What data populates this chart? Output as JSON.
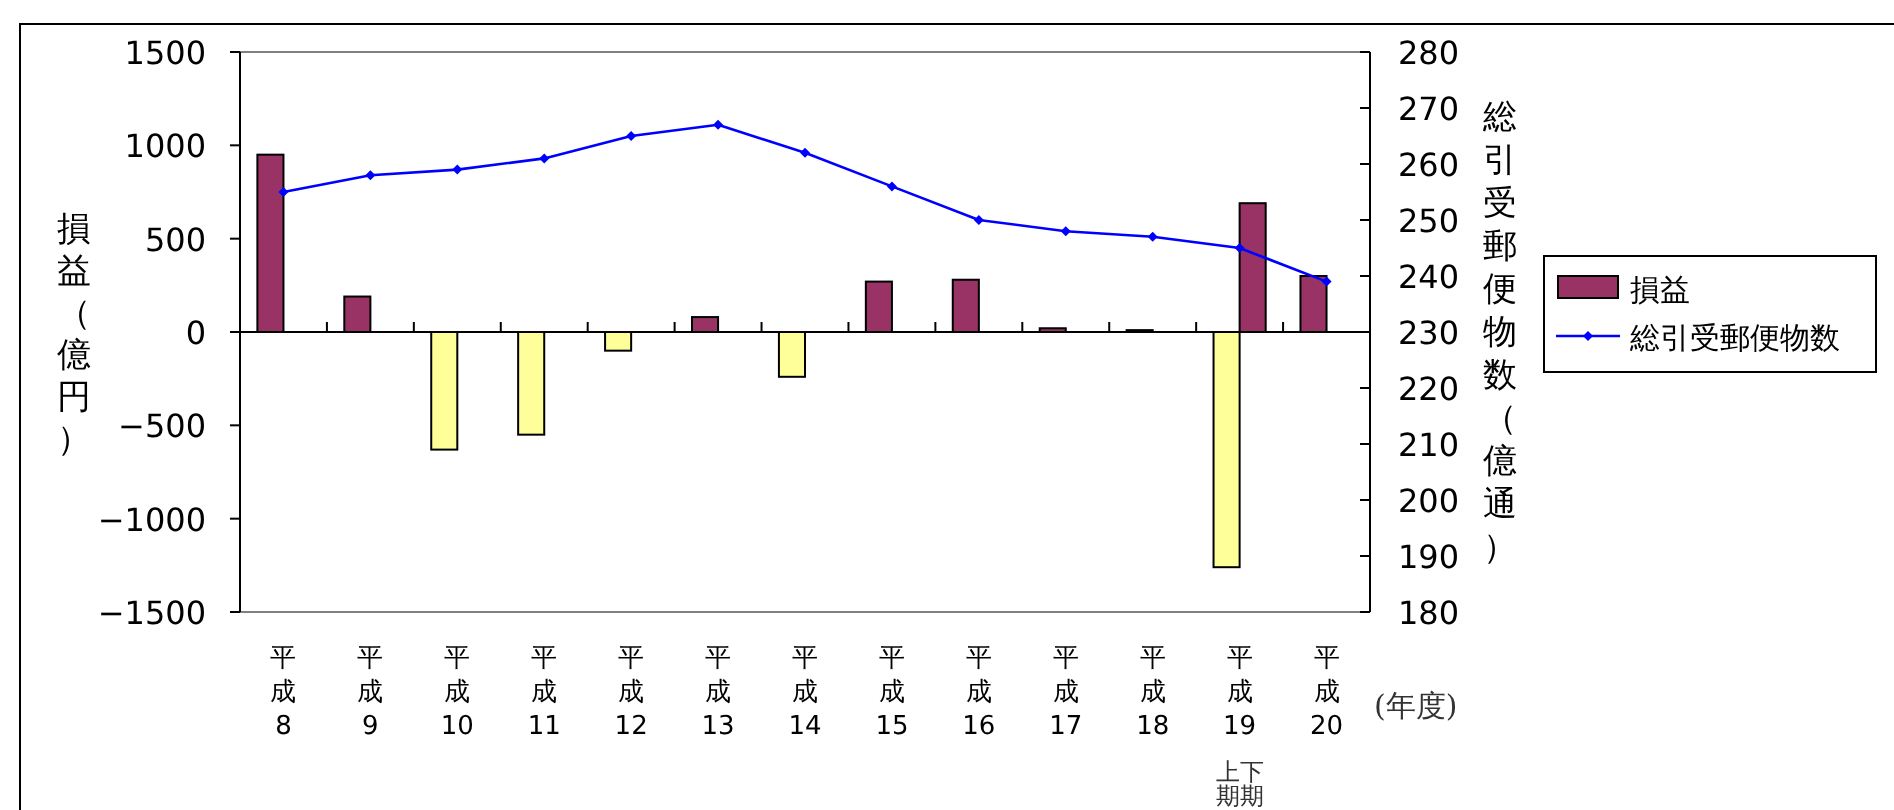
{
  "chart_data": {
    "type": "bar",
    "categories": [
      "平成8",
      "平成9",
      "平成10",
      "平成11",
      "平成12",
      "平成13",
      "平成14",
      "平成15",
      "平成16",
      "平成17",
      "平成18",
      "平成19",
      "平成20"
    ],
    "series": [
      {
        "name": "損益",
        "color": "#993366",
        "colors": [
          "#993366",
          "#993366",
          "#ffff99",
          "#ffff99",
          "#ffff99",
          "#993366",
          "#ffff99",
          "#993366",
          "#993366",
          "#993366",
          "#993366",
          "#ffff99",
          "#993366"
        ],
        "values": [
          950,
          190,
          -630,
          -550,
          -100,
          80,
          -240,
          270,
          280,
          20,
          10,
          -1260,
          300
        ]
      },
      {
        "colors": [
          null,
          null,
          null,
          null,
          null,
          null,
          null,
          null,
          null,
          null,
          null,
          "#993366",
          null
        ],
        "values": [
          null,
          null,
          null,
          null,
          null,
          null,
          null,
          null,
          null,
          null,
          null,
          690,
          null
        ]
      },
      {
        "name": "総引受郵便物数",
        "type": "line",
        "axis": "y2",
        "color": "#0000ff",
        "values": [
          255,
          258,
          259,
          261,
          265,
          267,
          262,
          256,
          250,
          248,
          247,
          245,
          239
        ]
      }
    ],
    "ylim": [
      -1500,
      1500
    ],
    "yticks": [
      -1500,
      -1000,
      -500,
      0,
      500,
      1000,
      1500
    ],
    "y2lim": [
      180,
      280
    ],
    "y2ticks": [
      180,
      190,
      200,
      210,
      220,
      230,
      240,
      250,
      260,
      270,
      280
    ],
    "ylabel": "損益（億円）",
    "y2label": "総引受郵便物数（億通）",
    "xlabel": "(年度)",
    "annotations": [
      "上期",
      "下期"
    ],
    "marker": "diamond",
    "legend": "right"
  }
}
